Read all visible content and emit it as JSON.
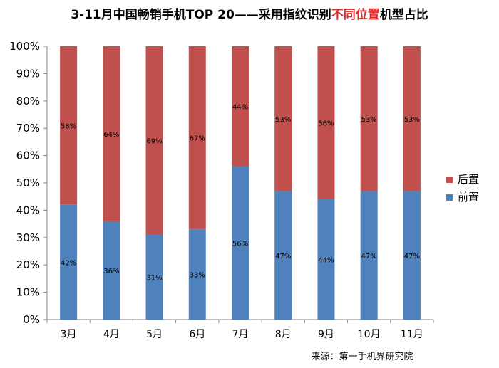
{
  "chart_data": {
    "type": "bar",
    "stacked": true,
    "title_parts": [
      {
        "text": "3-11月中国畅销手机TOP 20——采用指纹识别",
        "color": "#000000"
      },
      {
        "text": "不同位置",
        "color": "#e3262a"
      },
      {
        "text": "机型占比",
        "color": "#000000"
      }
    ],
    "categories": [
      "3月",
      "4月",
      "5月",
      "6月",
      "7月",
      "8月",
      "9月",
      "10月",
      "11月"
    ],
    "series": [
      {
        "name": "前置",
        "color": "#4f81bd",
        "values": [
          42,
          36,
          31,
          33,
          56,
          47,
          44,
          47,
          47
        ]
      },
      {
        "name": "后置",
        "color": "#c0504d",
        "values": [
          58,
          64,
          69,
          67,
          44,
          53,
          56,
          53,
          53
        ]
      }
    ],
    "yticks": [
      "0%",
      "10%",
      "20%",
      "30%",
      "40%",
      "50%",
      "60%",
      "70%",
      "80%",
      "90%",
      "100%"
    ],
    "ylim": [
      0,
      100
    ],
    "legend_position": "right",
    "grid": false,
    "source": "来源：第一手机界研究院"
  }
}
